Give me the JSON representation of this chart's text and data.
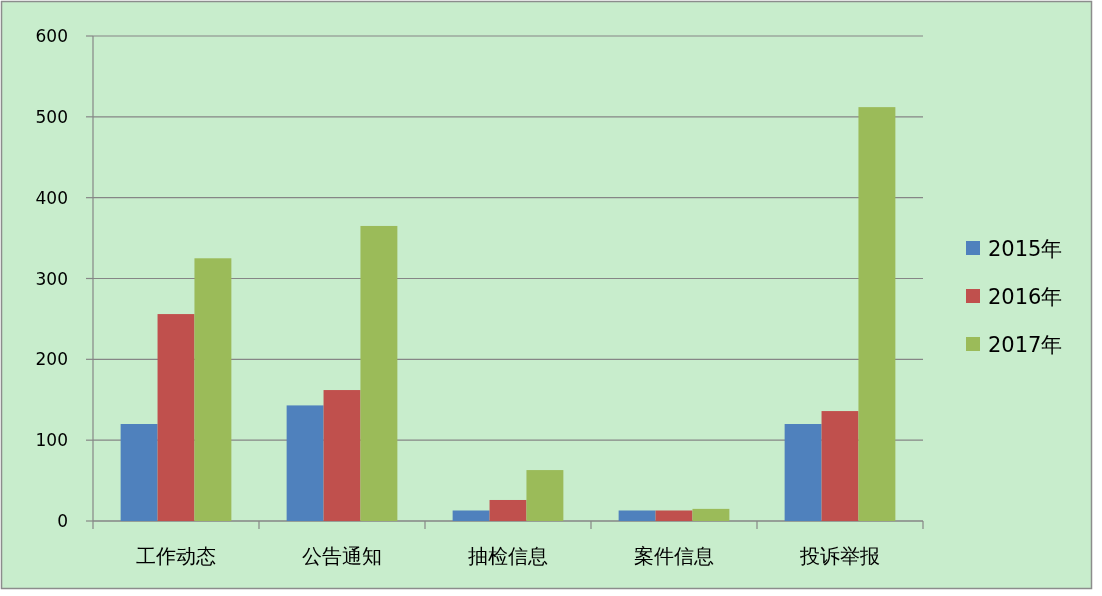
{
  "chart_data": {
    "type": "bar",
    "categories": [
      "工作动态",
      "公告通知",
      "抽检信息",
      "案件信息",
      "投诉举报"
    ],
    "series": [
      {
        "name": "2015年",
        "color": "#4f81bd",
        "values": [
          120,
          143,
          13,
          13,
          120
        ]
      },
      {
        "name": "2016年",
        "color": "#c0504d",
        "values": [
          256,
          162,
          26,
          13,
          136
        ]
      },
      {
        "name": "2017年",
        "color": "#9bbb59",
        "values": [
          325,
          365,
          63,
          15,
          512
        ]
      }
    ],
    "ylim": [
      0,
      600
    ],
    "yticks": [
      0,
      100,
      200,
      300,
      400,
      500,
      600
    ],
    "grid": "y",
    "legend": "right"
  }
}
